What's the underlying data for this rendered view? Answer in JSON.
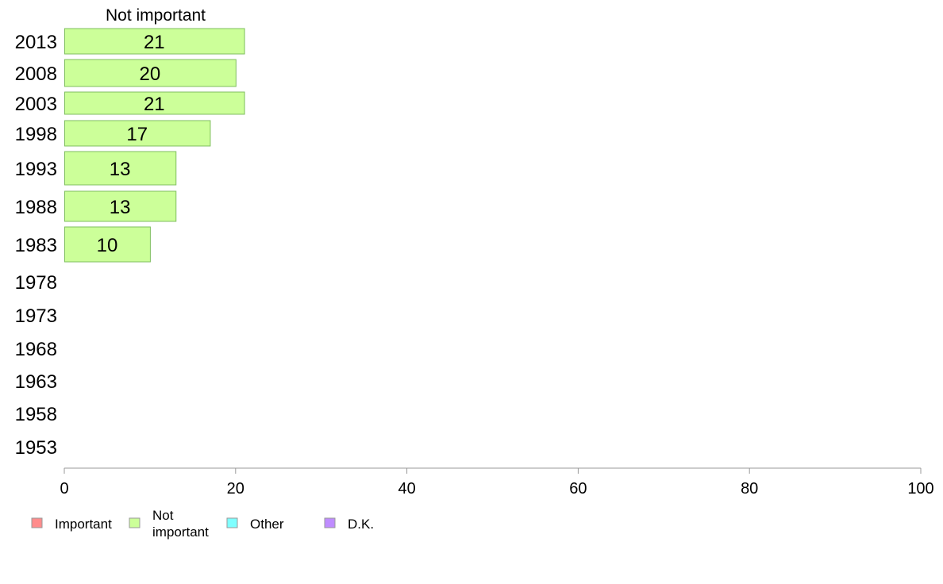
{
  "chart_data": {
    "type": "bar",
    "orientation": "horizontal",
    "title": "Not important",
    "categories": [
      "2013",
      "2008",
      "2003",
      "1998",
      "1993",
      "1988",
      "1983",
      "1978",
      "1973",
      "1968",
      "1963",
      "1958",
      "1953"
    ],
    "series": [
      {
        "name": "Not important",
        "color": "#ccff99",
        "values": [
          21,
          20,
          21,
          17,
          13,
          13,
          10,
          null,
          null,
          null,
          null,
          null,
          null
        ],
        "data_labels": [
          "21",
          "20",
          "21",
          "17",
          "13",
          "13",
          "10",
          "",
          "",
          "",
          "",
          "",
          ""
        ]
      }
    ],
    "xlim": [
      0,
      100
    ],
    "xticks": [
      "0",
      "20",
      "40",
      "60",
      "80",
      "100"
    ],
    "grid": false,
    "legend": {
      "placement": "bottom-left",
      "items": [
        {
          "label": "Important",
          "color": "#ff8c8c"
        },
        {
          "label": "Not\nimportant",
          "color": "#ccff99"
        },
        {
          "label": "Other",
          "color": "#7fffff"
        },
        {
          "label": "D.K.",
          "color": "#bf8cff"
        }
      ]
    }
  }
}
